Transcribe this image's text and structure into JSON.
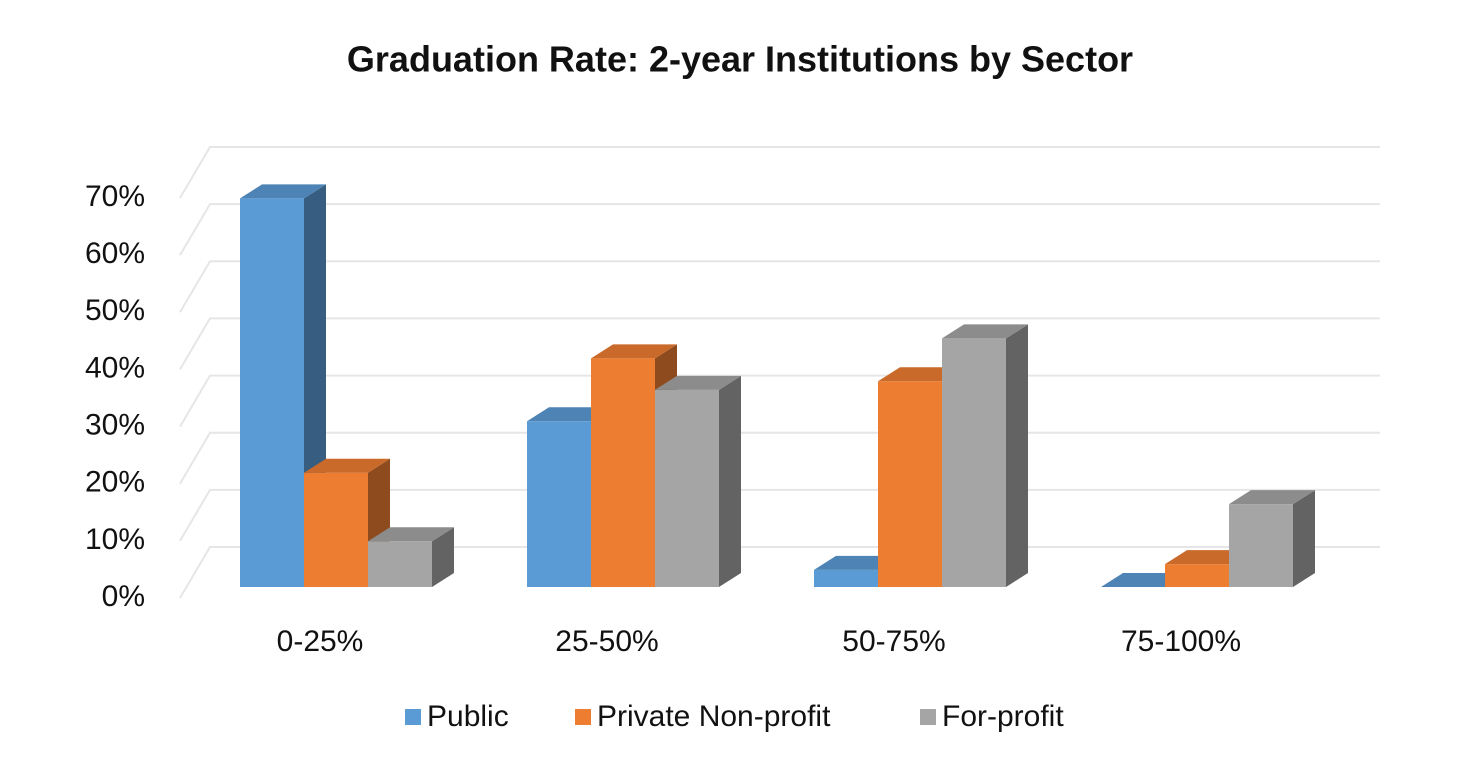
{
  "chart_data": {
    "type": "bar3d",
    "title": "Graduation Rate: 2-year Institutions by Sector",
    "categories": [
      "0-25%",
      "25-50%",
      "50-75%",
      "75-100%"
    ],
    "series": [
      {
        "name": "Public",
        "color": "#5b9bd5",
        "values": [
          68,
          29,
          3,
          0
        ]
      },
      {
        "name": "Private Non-profit",
        "color": "#ed7d31",
        "values": [
          20,
          40,
          36,
          4
        ]
      },
      {
        "name": "For-profit",
        "color": "#a5a5a5",
        "values": [
          8,
          34.5,
          43.5,
          14.5
        ]
      }
    ],
    "ylim": [
      0,
      70
    ],
    "yticks": [
      {
        "value": 0,
        "label": "0%"
      },
      {
        "value": 10,
        "label": "10%"
      },
      {
        "value": 20,
        "label": "20%"
      },
      {
        "value": 30,
        "label": "30%"
      },
      {
        "value": 40,
        "label": "40%"
      },
      {
        "value": 50,
        "label": "50%"
      },
      {
        "value": 60,
        "label": "60%"
      },
      {
        "value": 70,
        "label": "70%"
      }
    ],
    "grid": true,
    "legend": "bottom"
  }
}
